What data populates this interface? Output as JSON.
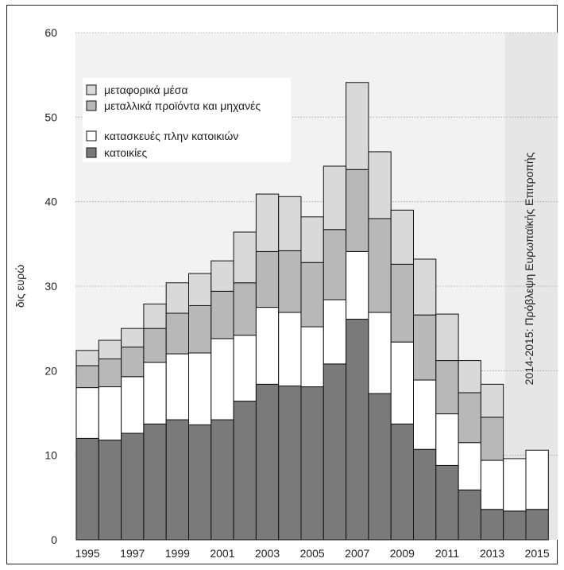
{
  "chart_data": {
    "type": "bar",
    "stacked": true,
    "title": "",
    "xlabel": "",
    "ylabel": "δις ευρώ",
    "ylim": [
      0,
      60
    ],
    "yticks": [
      0,
      10,
      20,
      30,
      40,
      50,
      60
    ],
    "x_tick_labels": [
      "1995",
      "1997",
      "1999",
      "2001",
      "2003",
      "2005",
      "2007",
      "2009",
      "2011",
      "2013",
      "2015"
    ],
    "grid": "horizontal dotted",
    "legend_position": "top-left",
    "categories": [
      "1995",
      "1996",
      "1997",
      "1998",
      "1999",
      "2000",
      "2001",
      "2002",
      "2003",
      "2004",
      "2005",
      "2006",
      "2007",
      "2008",
      "2009",
      "2010",
      "2011",
      "2012",
      "2013",
      "2014",
      "2015"
    ],
    "series": [
      {
        "name": "κατοικίες",
        "color": "#7a7a7a",
        "values": [
          12.0,
          11.8,
          12.6,
          13.7,
          14.2,
          13.6,
          14.2,
          16.4,
          18.4,
          18.2,
          18.1,
          20.8,
          26.1,
          17.3,
          13.7,
          10.7,
          8.8,
          5.9,
          3.6,
          3.4,
          3.6
        ]
      },
      {
        "name": "κατασκευές πλην κατοικιών",
        "color": "#ffffff",
        "values": [
          6.0,
          6.3,
          6.7,
          7.3,
          7.8,
          8.5,
          9.6,
          7.8,
          9.1,
          8.7,
          7.1,
          7.6,
          8.0,
          9.6,
          9.7,
          8.2,
          6.1,
          5.6,
          5.8,
          6.2,
          7.0
        ]
      },
      {
        "name": "μεταλλικά προϊόντα και μηχανές",
        "color": "#b8b8b8",
        "values": [
          2.6,
          3.3,
          3.5,
          4.0,
          4.8,
          5.6,
          5.6,
          6.2,
          6.6,
          7.3,
          7.6,
          8.3,
          9.7,
          11.1,
          9.2,
          7.7,
          6.3,
          5.9,
          5.1,
          0,
          0
        ]
      },
      {
        "name": "μεταφορικά μέσα",
        "color": "#d9d9d9",
        "values": [
          1.8,
          2.2,
          2.2,
          2.9,
          3.6,
          3.8,
          3.6,
          6.0,
          6.8,
          6.4,
          5.4,
          7.5,
          10.3,
          7.9,
          6.4,
          6.6,
          5.5,
          3.8,
          3.9,
          0,
          0
        ]
      }
    ],
    "forecast_region": {
      "label": "2014-2015: Πρόβλεψη Ευρωπαϊκής Επιτροπής",
      "from": "2014",
      "to": "2015",
      "color": "#e6e6e6"
    },
    "plot_background": "#f2f2f2"
  }
}
